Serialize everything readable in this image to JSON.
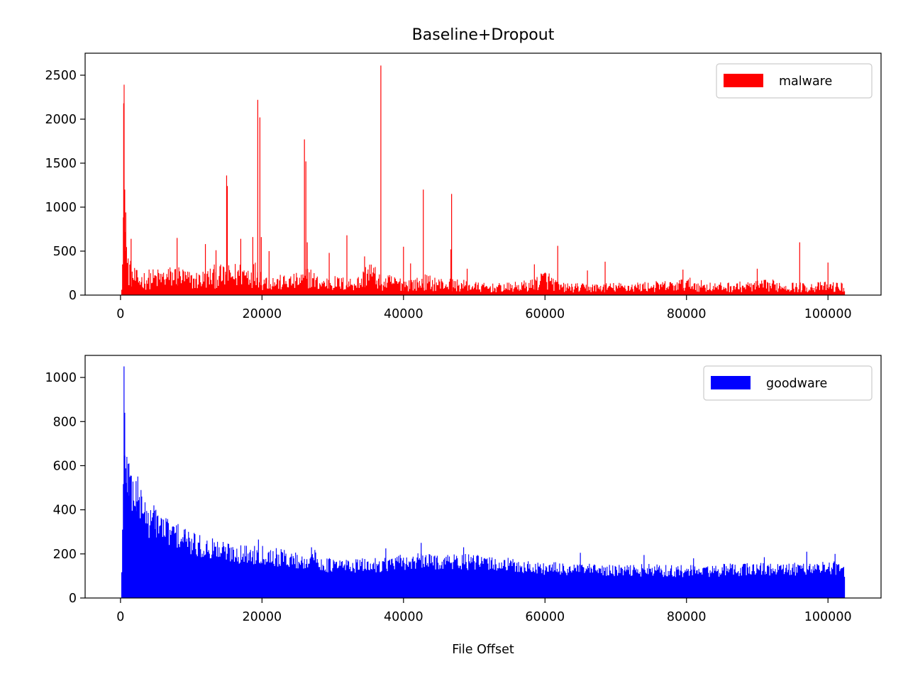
{
  "chart_data": [
    {
      "type": "bar",
      "title": "Baseline+Dropout",
      "xlabel": "",
      "ylabel": "",
      "xlim": [
        -5000,
        107500
      ],
      "ylim": [
        0,
        2750
      ],
      "x_ticks": [
        0,
        20000,
        40000,
        60000,
        80000,
        100000
      ],
      "x_tick_labels": [
        "0",
        "20000",
        "40000",
        "60000",
        "80000",
        "100000"
      ],
      "y_ticks": [
        0,
        500,
        1000,
        1500,
        2000,
        2500
      ],
      "y_tick_labels": [
        "0",
        "500",
        "1000",
        "1500",
        "2000",
        "2500"
      ],
      "grid": false,
      "legend_position": "top-right",
      "x_range": [
        0,
        102400
      ],
      "series": [
        {
          "name": "malware",
          "color": "#ff0000",
          "x": [
            0,
            300,
            450,
            600,
            900,
            1500,
            2500,
            4000,
            6000,
            8000,
            10000,
            12000,
            13500,
            15000,
            17000,
            18500,
            19500,
            20000,
            22000,
            24000,
            26000,
            26500,
            28000,
            30000,
            32000,
            34000,
            35000,
            37000,
            38000,
            40000,
            42000,
            43000,
            45000,
            47000,
            49000,
            52000,
            55000,
            58000,
            60000,
            62000,
            66000,
            70000,
            74000,
            78000,
            80000,
            84000,
            88000,
            92000,
            96000,
            100000,
            102400
          ],
          "values": [
            0,
            600,
            2180,
            1200,
            450,
            300,
            220,
            250,
            260,
            300,
            220,
            250,
            300,
            280,
            330,
            320,
            340,
            220,
            190,
            200,
            230,
            300,
            170,
            190,
            170,
            200,
            380,
            170,
            200,
            170,
            170,
            200,
            170,
            160,
            140,
            110,
            120,
            150,
            260,
            120,
            110,
            120,
            130,
            140,
            170,
            120,
            130,
            150,
            120,
            130,
            120
          ]
        }
      ],
      "spikes": [
        {
          "x": 450,
          "value": 2180
        },
        {
          "x": 600,
          "value": 1200
        },
        {
          "x": 750,
          "value": 940
        },
        {
          "x": 1500,
          "value": 640
        },
        {
          "x": 8000,
          "value": 650
        },
        {
          "x": 12000,
          "value": 580
        },
        {
          "x": 13500,
          "value": 510
        },
        {
          "x": 15000,
          "value": 1360
        },
        {
          "x": 15100,
          "value": 1240
        },
        {
          "x": 17000,
          "value": 640
        },
        {
          "x": 18700,
          "value": 660
        },
        {
          "x": 19400,
          "value": 2220
        },
        {
          "x": 19700,
          "value": 2020
        },
        {
          "x": 19900,
          "value": 660
        },
        {
          "x": 21000,
          "value": 500
        },
        {
          "x": 26000,
          "value": 1770
        },
        {
          "x": 26200,
          "value": 1520
        },
        {
          "x": 26400,
          "value": 600
        },
        {
          "x": 29500,
          "value": 480
        },
        {
          "x": 32000,
          "value": 680
        },
        {
          "x": 34500,
          "value": 440
        },
        {
          "x": 36800,
          "value": 2610
        },
        {
          "x": 40000,
          "value": 550
        },
        {
          "x": 41000,
          "value": 360
        },
        {
          "x": 42800,
          "value": 1200
        },
        {
          "x": 46800,
          "value": 1150
        },
        {
          "x": 46700,
          "value": 520
        },
        {
          "x": 49000,
          "value": 300
        },
        {
          "x": 58500,
          "value": 350
        },
        {
          "x": 61800,
          "value": 560
        },
        {
          "x": 66000,
          "value": 280
        },
        {
          "x": 68500,
          "value": 380
        },
        {
          "x": 79500,
          "value": 290
        },
        {
          "x": 90000,
          "value": 300
        },
        {
          "x": 96000,
          "value": 600
        },
        {
          "x": 100000,
          "value": 370
        }
      ]
    },
    {
      "type": "bar",
      "title": "",
      "xlabel": "File Offset",
      "ylabel": "",
      "xlim": [
        -5000,
        107500
      ],
      "ylim": [
        0,
        1100
      ],
      "x_ticks": [
        0,
        20000,
        40000,
        60000,
        80000,
        100000
      ],
      "x_tick_labels": [
        "0",
        "20000",
        "40000",
        "60000",
        "80000",
        "100000"
      ],
      "y_ticks": [
        0,
        200,
        400,
        600,
        800,
        1000
      ],
      "y_tick_labels": [
        "0",
        "200",
        "400",
        "600",
        "800",
        "1000"
      ],
      "grid": false,
      "legend_position": "top-right",
      "x_range": [
        0,
        102400
      ],
      "series": [
        {
          "name": "goodware",
          "color": "#0000ff",
          "x": [
            0,
            200,
            400,
            700,
            1000,
            1500,
            2000,
            3000,
            4000,
            5000,
            6000,
            8000,
            10000,
            12000,
            14000,
            16000,
            18000,
            20000,
            22000,
            24000,
            26000,
            27000,
            28000,
            30000,
            32000,
            35000,
            38000,
            42000,
            46000,
            50000,
            54000,
            58000,
            62000,
            66000,
            70000,
            74000,
            78000,
            82000,
            86000,
            90000,
            94000,
            98000,
            102000,
            102400
          ],
          "values": [
            0,
            250,
            580,
            620,
            560,
            500,
            480,
            430,
            350,
            360,
            320,
            290,
            250,
            230,
            220,
            210,
            200,
            205,
            190,
            180,
            165,
            200,
            160,
            150,
            150,
            150,
            160,
            170,
            170,
            165,
            155,
            140,
            135,
            130,
            125,
            130,
            125,
            125,
            130,
            135,
            130,
            140,
            140,
            90
          ]
        }
      ],
      "spikes": [
        {
          "x": 500,
          "value": 1050
        },
        {
          "x": 600,
          "value": 840
        },
        {
          "x": 900,
          "value": 640
        },
        {
          "x": 1200,
          "value": 610
        },
        {
          "x": 2200,
          "value": 530
        },
        {
          "x": 3000,
          "value": 460
        },
        {
          "x": 5000,
          "value": 400
        },
        {
          "x": 9000,
          "value": 310
        },
        {
          "x": 13000,
          "value": 270
        },
        {
          "x": 19500,
          "value": 265
        },
        {
          "x": 27000,
          "value": 230
        },
        {
          "x": 37500,
          "value": 225
        },
        {
          "x": 42500,
          "value": 250
        },
        {
          "x": 48500,
          "value": 230
        },
        {
          "x": 65000,
          "value": 205
        },
        {
          "x": 74000,
          "value": 195
        },
        {
          "x": 81000,
          "value": 180
        },
        {
          "x": 91000,
          "value": 185
        },
        {
          "x": 97000,
          "value": 210
        },
        {
          "x": 101000,
          "value": 200
        }
      ]
    }
  ]
}
